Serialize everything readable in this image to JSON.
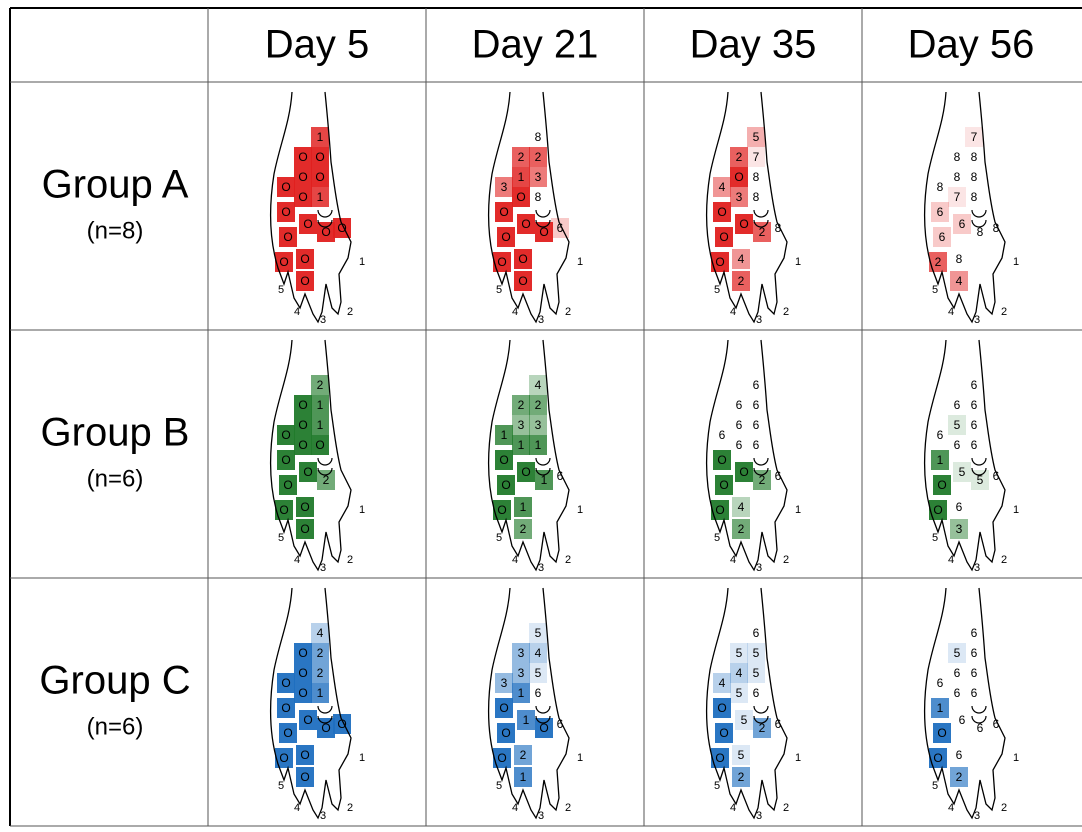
{
  "columns": [
    "Day 5",
    "Day 21",
    "Day 35",
    "Day 56"
  ],
  "toe_labels": [
    "1",
    "2",
    "3",
    "4",
    "5"
  ],
  "rows": [
    {
      "group": "Group A",
      "n": {
        "value": 8,
        "label": "(n=8)"
      },
      "color": "#e0201f",
      "cells": [
        [
          "1",
          "O",
          "O",
          "1",
          "O",
          "O",
          "O",
          "O",
          "O",
          "O",
          "O",
          "O",
          "O",
          "O",
          "O",
          "O"
        ],
        [
          "8",
          "2",
          "3",
          "8",
          "2",
          "1",
          "O",
          "3",
          "O",
          "O",
          "O",
          "O",
          "6",
          "O",
          "O",
          "O"
        ],
        [
          "5",
          "7",
          "8",
          "8",
          "2",
          "O",
          "3",
          "4",
          "O",
          "O",
          "O",
          "2",
          "8",
          "O",
          "4",
          "2"
        ],
        [
          "7",
          "8",
          "8",
          "8",
          "8",
          "8",
          "7",
          "8",
          "6",
          "6",
          "6",
          "8",
          "8",
          "2",
          "8",
          "4"
        ]
      ]
    },
    {
      "group": "Group B",
      "n": {
        "value": 6,
        "label": "(n=6)"
      },
      "color": "#217a2b",
      "cells": [
        [
          "2",
          "1",
          "1",
          "O",
          "O",
          "O",
          "O",
          "O",
          "O",
          "O",
          "O",
          "2",
          null,
          "O",
          "O",
          "O"
        ],
        [
          "4",
          "2",
          "3",
          "1",
          "2",
          "3",
          "1",
          "1",
          "O",
          "O",
          "O",
          "1",
          "6",
          "O",
          "1",
          "2"
        ],
        [
          "6",
          "6",
          "6",
          "6",
          "6",
          "6",
          "6",
          "6",
          "O",
          "O",
          "O",
          "2",
          "6",
          "O",
          "4",
          "2"
        ],
        [
          "6",
          "6",
          "6",
          "6",
          "6",
          "5",
          "6",
          "6",
          "1",
          "O",
          "5",
          "5",
          "6",
          "O",
          "6",
          "3"
        ]
      ]
    },
    {
      "group": "Group C",
      "n": {
        "value": 6,
        "label": "(n=6)"
      },
      "color": "#1f6fc0",
      "cells": [
        [
          "4",
          "2",
          "2",
          "1",
          "O",
          "O",
          "O",
          "O",
          "O",
          "O",
          "O",
          "O",
          "O",
          "O",
          "O",
          "O"
        ],
        [
          "5",
          "4",
          "5",
          "6",
          "3",
          "3",
          "1",
          "3",
          "O",
          "O",
          "1",
          "O",
          "6",
          "O",
          "2",
          "1"
        ],
        [
          "6",
          "5",
          "5",
          "6",
          "5",
          "4",
          "5",
          "4",
          "O",
          "O",
          "5",
          "2",
          "6",
          "O",
          "5",
          "2"
        ],
        [
          "6",
          "6",
          "6",
          "6",
          "5",
          "6",
          "6",
          "6",
          "1",
          "O",
          "6",
          "6",
          "6",
          "O",
          "6",
          "2"
        ]
      ]
    }
  ]
}
